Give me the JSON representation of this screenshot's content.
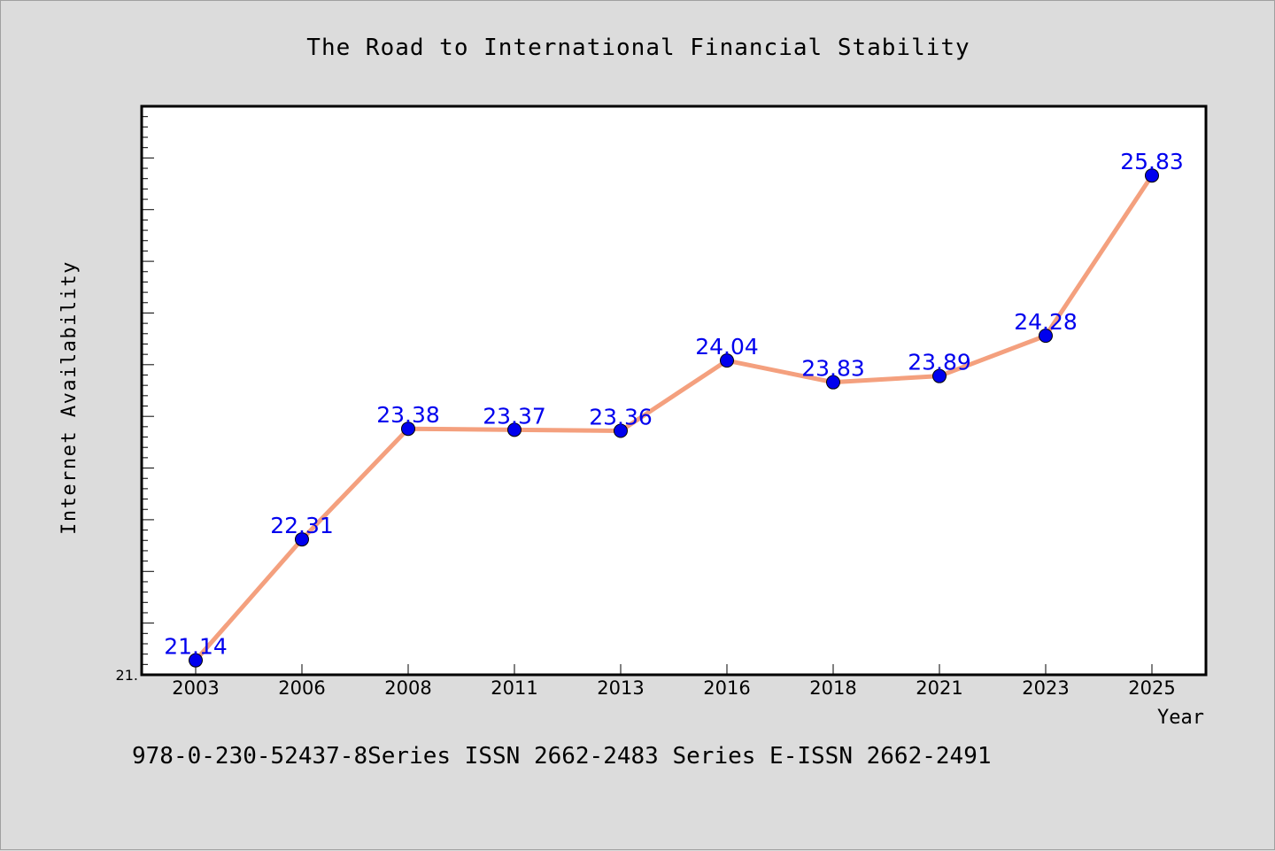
{
  "chart_data": {
    "type": "line",
    "title": "The Road to International Financial Stability",
    "xlabel": "Year",
    "ylabel": "Internet Availability",
    "categories": [
      "2003",
      "2006",
      "2008",
      "2011",
      "2013",
      "2016",
      "2018",
      "2021",
      "2023",
      "2025"
    ],
    "values": [
      21.14,
      22.31,
      23.38,
      23.37,
      23.36,
      24.04,
      23.83,
      23.89,
      24.28,
      25.83
    ],
    "data_labels": [
      "21.14",
      "22.31",
      "23.38",
      "23.37",
      "23.36",
      "24.04",
      "23.83",
      "23.89",
      "24.28",
      "25.83"
    ],
    "ylim": [
      21,
      26.5
    ],
    "y_tick_label": "21.",
    "grid": false,
    "legend": "none",
    "line_color": "#f4a07e",
    "marker_color": "#0000ee",
    "label_color": "#0000ee"
  },
  "footer": {
    "text": "978-0-230-52437-8Series ISSN 2662-2483 Series E-ISSN 2662-2491"
  }
}
